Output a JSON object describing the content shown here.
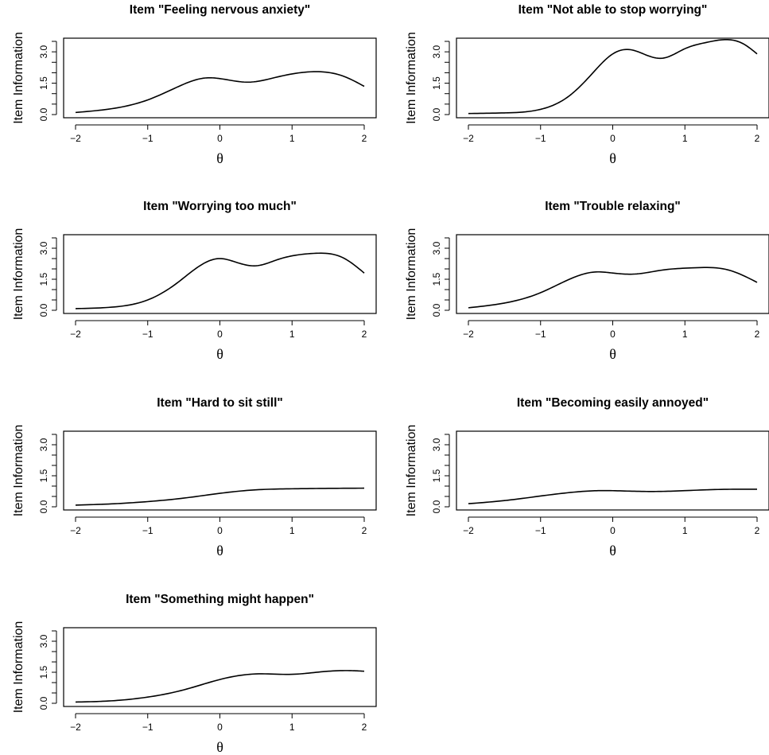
{
  "chart_data": [
    {
      "type": "line",
      "title": "Item \"Feeling nervous anxiety\"",
      "xlabel": "θ",
      "ylabel": "Item Information",
      "xlim": [
        -2,
        2
      ],
      "ylim": [
        0,
        3.5
      ],
      "xticks": [
        "−2",
        "−1",
        "0",
        "1",
        "2"
      ],
      "yticks": [
        "0.0",
        "1.5",
        "3.0"
      ],
      "grid": false,
      "x": [
        -2,
        -1.5,
        -1,
        -0.6,
        -0.2,
        0,
        0.4,
        0.8,
        1.3,
        1.7,
        2
      ],
      "y": [
        0.1,
        0.28,
        0.7,
        1.3,
        1.75,
        1.72,
        1.55,
        1.8,
        2.05,
        1.85,
        1.35
      ]
    },
    {
      "type": "line",
      "title": "Item \"Not able to stop worrying\"",
      "xlabel": "θ",
      "ylabel": "Item Information",
      "xlim": [
        -2,
        2
      ],
      "ylim": [
        0,
        3.5
      ],
      "xticks": [
        "−2",
        "−1",
        "0",
        "1",
        "2"
      ],
      "yticks": [
        "0.0",
        "1.5",
        "3.0"
      ],
      "grid": false,
      "x": [
        -2,
        -1.5,
        -1,
        -0.6,
        -0.3,
        0,
        0.25,
        0.5,
        0.7,
        1,
        1.3,
        1.8,
        2
      ],
      "y": [
        0.05,
        0.08,
        0.25,
        0.9,
        1.9,
        2.9,
        3.1,
        2.8,
        2.7,
        3.15,
        3.45,
        3.4,
        2.9
      ]
    },
    {
      "type": "line",
      "title": "Item \"Worrying too much\"",
      "xlabel": "θ",
      "ylabel": "Item Information",
      "xlim": [
        -2,
        2
      ],
      "ylim": [
        0,
        3.5
      ],
      "xticks": [
        "−2",
        "−1",
        "0",
        "1",
        "2"
      ],
      "yticks": [
        "0.0",
        "1.5",
        "3.0"
      ],
      "grid": false,
      "x": [
        -2,
        -1.5,
        -1,
        -0.6,
        -0.3,
        0,
        0.2,
        0.5,
        0.8,
        1.3,
        1.7,
        2
      ],
      "y": [
        0.08,
        0.15,
        0.5,
        1.3,
        2.1,
        2.5,
        2.35,
        2.15,
        2.45,
        2.75,
        2.55,
        1.8
      ]
    },
    {
      "type": "line",
      "title": "Item \"Trouble relaxing\"",
      "xlabel": "θ",
      "ylabel": "Item Information",
      "xlim": [
        -2,
        2
      ],
      "ylim": [
        0,
        3.5
      ],
      "xticks": [
        "−2",
        "−1",
        "0",
        "1",
        "2"
      ],
      "yticks": [
        "0.0",
        "1.5",
        "3.0"
      ],
      "grid": false,
      "x": [
        -2,
        -1.5,
        -1,
        -0.6,
        -0.25,
        0,
        0.3,
        0.7,
        1.1,
        1.6,
        2
      ],
      "y": [
        0.12,
        0.35,
        0.85,
        1.5,
        1.85,
        1.8,
        1.75,
        1.95,
        2.05,
        1.95,
        1.35
      ]
    },
    {
      "type": "line",
      "title": "Item \"Hard to sit still\"",
      "xlabel": "θ",
      "ylabel": "Item Information",
      "xlim": [
        -2,
        2
      ],
      "ylim": [
        0,
        3.5
      ],
      "xticks": [
        "−2",
        "−1",
        "0",
        "1",
        "2"
      ],
      "yticks": [
        "0.0",
        "1.5",
        "3.0"
      ],
      "grid": false,
      "x": [
        -2,
        -1.5,
        -1,
        -0.5,
        0,
        0.5,
        1,
        1.5,
        2
      ],
      "y": [
        0.08,
        0.14,
        0.25,
        0.42,
        0.65,
        0.82,
        0.87,
        0.89,
        0.9
      ]
    },
    {
      "type": "line",
      "title": "Item \"Becoming easily annoyed\"",
      "xlabel": "θ",
      "ylabel": "Item Information",
      "xlim": [
        -2,
        2
      ],
      "ylim": [
        0,
        3.5
      ],
      "xticks": [
        "−2",
        "−1",
        "0",
        "1",
        "2"
      ],
      "yticks": [
        "0.0",
        "1.5",
        "3.0"
      ],
      "grid": false,
      "x": [
        -2,
        -1.5,
        -1,
        -0.5,
        -0.2,
        0.2,
        0.6,
        1,
        1.5,
        2
      ],
      "y": [
        0.15,
        0.3,
        0.52,
        0.72,
        0.78,
        0.76,
        0.74,
        0.78,
        0.84,
        0.85
      ]
    },
    {
      "type": "line",
      "title": "Item \"Something might happen\"",
      "xlabel": "θ",
      "ylabel": "Item Information",
      "xlim": [
        -2,
        2
      ],
      "ylim": [
        0,
        3.5
      ],
      "xticks": [
        "−2",
        "−1",
        "0",
        "1",
        "2"
      ],
      "yticks": [
        "0.0",
        "1.5",
        "3.0"
      ],
      "grid": false,
      "x": [
        -2,
        -1.5,
        -1,
        -0.5,
        0,
        0.5,
        1,
        1.4,
        1.8,
        2
      ],
      "y": [
        0.06,
        0.12,
        0.3,
        0.65,
        1.15,
        1.42,
        1.4,
        1.52,
        1.58,
        1.55
      ]
    }
  ]
}
